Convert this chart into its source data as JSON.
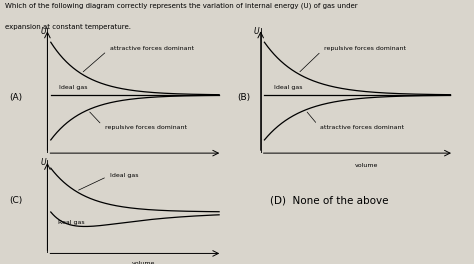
{
  "title_line1": "Which of the following diagram correctly represents the variation of internal energy (U) of gas under",
  "title_line2": "expansion at constant temperature.",
  "bg_color": "#d9d5cc",
  "panel_A_label": "(A)",
  "panel_B_label": "(B)",
  "panel_C_label": "(C)",
  "panel_D_label": "(D)",
  "panel_D_text": "None of the above",
  "lw": 0.9,
  "ann_fontsize": 4.5,
  "label_fontsize": 5.5,
  "axis_label_fontsize": 5.5,
  "panel_label_fontsize": 6.5
}
